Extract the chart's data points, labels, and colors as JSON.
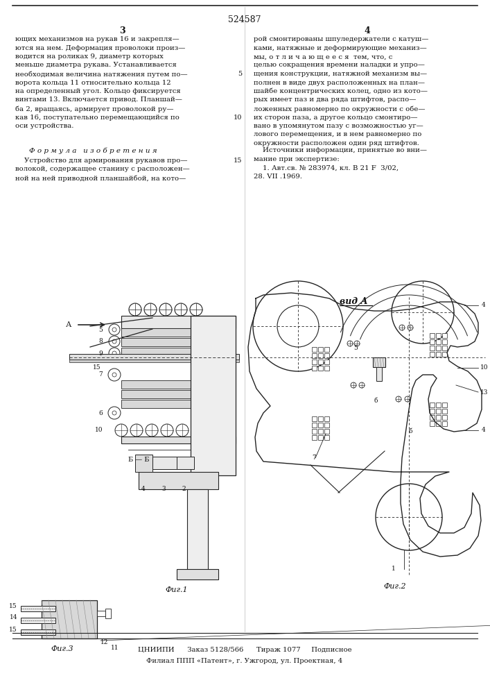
{
  "patent_number": "524587",
  "page_left": "3",
  "page_right": "4",
  "bg_color": "#ffffff",
  "text_color": "#111111",
  "left_col_lines": [
    "ющих механизмов на рукав 16 и закрепля—",
    "ются на нем. Деформация проволоки произ—",
    "водится на роликах 9, диаметр которых",
    "меньше диаметра рукава. Устанавливается",
    "необходимая величина натяжения путем по—",
    "ворота кольца 11 относительно кольца 12",
    "на определенный угол. Кольцо фиксируется",
    "винтами 13. Включается привод. Планшай—",
    "ба 2, вращаясь, армирует проволокой ру—",
    "кав 16, поступательно перемещающийся по",
    "оси устройства."
  ],
  "right_col_lines": [
    "рой смонтированы шпуледержатели с катуш—",
    "ками, натяжные и деформирующие механиз—",
    "мы, о т л и ч а ю щ е е с я  тем, что, с",
    "целью сокращения времени наладки и упро—",
    "щения конструкции, натяжной механизм вы—",
    "полнен в виде двух расположенных на план—",
    "шайбе концентрических колец, одно из кото—",
    "рых имеет паз и два ряда штифтов, распо—",
    "ложенных равномерно по окружности с обе—",
    "их сторон паза, а другое кольцо смонтиро—",
    "вано в упомянутом пазу с возможностью уг—",
    "лового перемещения, и в нем равномерно по",
    "окружности расположен один ряд штифтов."
  ],
  "formula_title": "Ф о р м у л а   и з о б р е т е н и я",
  "formula_lines": [
    "    Устройство для армирования рукавов про—",
    "волокой, содержащее станину с расположен—",
    "ной на ней приводной планшайбой, на кото—"
  ],
  "sources_title": "    Источники информации, принятые во вни—",
  "sources_lines": [
    "мание при экспертизе:",
    "    1. Авт.св. № 283974, кл. В 21 F  3/02,",
    "28. VII .1969."
  ],
  "footer_line1": "ЦНИИПИ      Заказ 5128/566      Тираж 1077     Подписное",
  "footer_line2": "Филиал ППП «Патент», г. Ужгород, ул. Проектная, 4"
}
